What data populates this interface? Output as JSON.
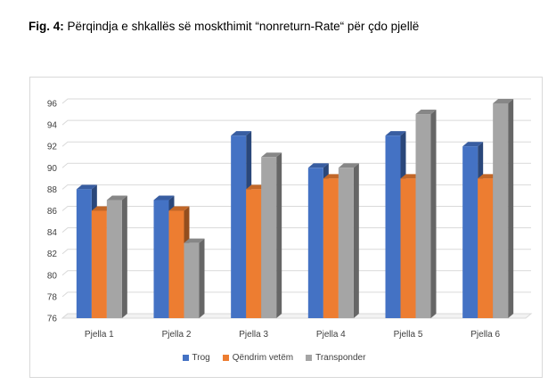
{
  "caption": {
    "label": "Fig. 4:",
    "text": "Përqindja e shkallës së moskthimit “nonreturn-Rate“ për çdo pjellë"
  },
  "chart_data": {
    "type": "bar",
    "categories": [
      "Pjella 1",
      "Pjella 2",
      "Pjella 3",
      "Pjella 4",
      "Pjella 5",
      "Pjella 6"
    ],
    "series": [
      {
        "name": "Trog",
        "color": "#4472c4",
        "values": [
          88,
          87,
          93,
          90,
          93,
          92
        ]
      },
      {
        "name": "Qëndrim vetëm",
        "color": "#ed7d31",
        "values": [
          86,
          86,
          88,
          89,
          89,
          89
        ]
      },
      {
        "name": "Transponder",
        "color": "#a5a5a5",
        "values": [
          87,
          83,
          91,
          90,
          95,
          96
        ]
      }
    ],
    "yticks": [
      "76",
      "78",
      "80",
      "82",
      "84",
      "86",
      "88",
      "90",
      "92",
      "94",
      "96"
    ],
    "ylim": [
      76,
      96
    ],
    "grid": true,
    "legend_position": "bottom",
    "style": "3d-clustered-column"
  }
}
